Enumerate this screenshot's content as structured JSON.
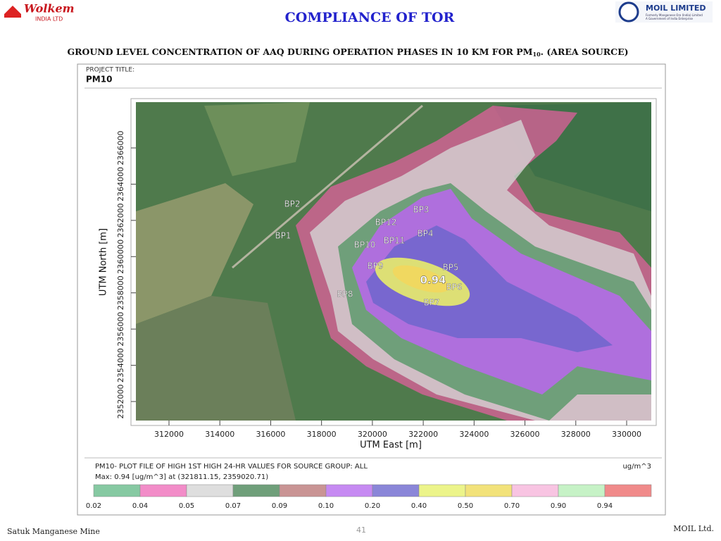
{
  "header": {
    "left_logo": {
      "name": "Wolkem",
      "sub": "INDIA LTD"
    },
    "right_logo": {
      "name": "MOIL LIMITED",
      "line1": "Formerly Manganese Ore (India) Limited",
      "line2": "A Government of India Enterprise"
    },
    "title": "COMPLIANCE OF TOR",
    "subtitle": {
      "text": "GROUND LEVEL CONCENTRATION OF AAQ DURING OPERATION PHASES IN 10 KM FOR PM",
      "sub": "10",
      "after": ". (AREA SOURCE)"
    }
  },
  "plot": {
    "project_label": "PROJECT TITLE:",
    "project_title": "PM10",
    "x_axis_title": "UTM East [m]",
    "y_axis_title": "UTM North [m]",
    "x_ticks": [
      312000,
      314000,
      316000,
      318000,
      320000,
      322000,
      324000,
      326000,
      328000,
      330000
    ],
    "y_ticks": [
      2352000,
      2354000,
      2356000,
      2358000,
      2360000,
      2362000,
      2364000,
      2366000
    ],
    "receptors": [
      "BP2",
      "BP1",
      "BP3",
      "BP12",
      "BP4",
      "BP10",
      "BP11",
      "BP9",
      "BP5",
      "BP8",
      "BP6",
      "BP7"
    ],
    "max_label": "0.94"
  },
  "legend": {
    "caption": "PM10- PLOT FILE OF HIGH 1ST HIGH 24-HR VALUES FOR SOURCE GROUP: ALL",
    "unit": "ug/m^3",
    "max_line": "Max:  0.94  [ug/m^3] at  (321811.15, 2359020.71)",
    "levels": [
      "0.02",
      "0.04",
      "0.05",
      "0.07",
      "0.09",
      "0.10",
      "0.20",
      "0.40",
      "0.50",
      "0.70",
      "0.90",
      "0.94"
    ],
    "colors": [
      "#86c9a2",
      "#f28cc8",
      "#dedede",
      "#6f9f7a",
      "#c99494",
      "#c68af2",
      "#8a86d8",
      "#ecf48a",
      "#f2e27a",
      "#f8c4e2",
      "#c6f2c6",
      "#f08a8a"
    ]
  },
  "footer": {
    "left": "Satuk Manganese Mine",
    "page": "41",
    "right": "MOIL Ltd."
  }
}
